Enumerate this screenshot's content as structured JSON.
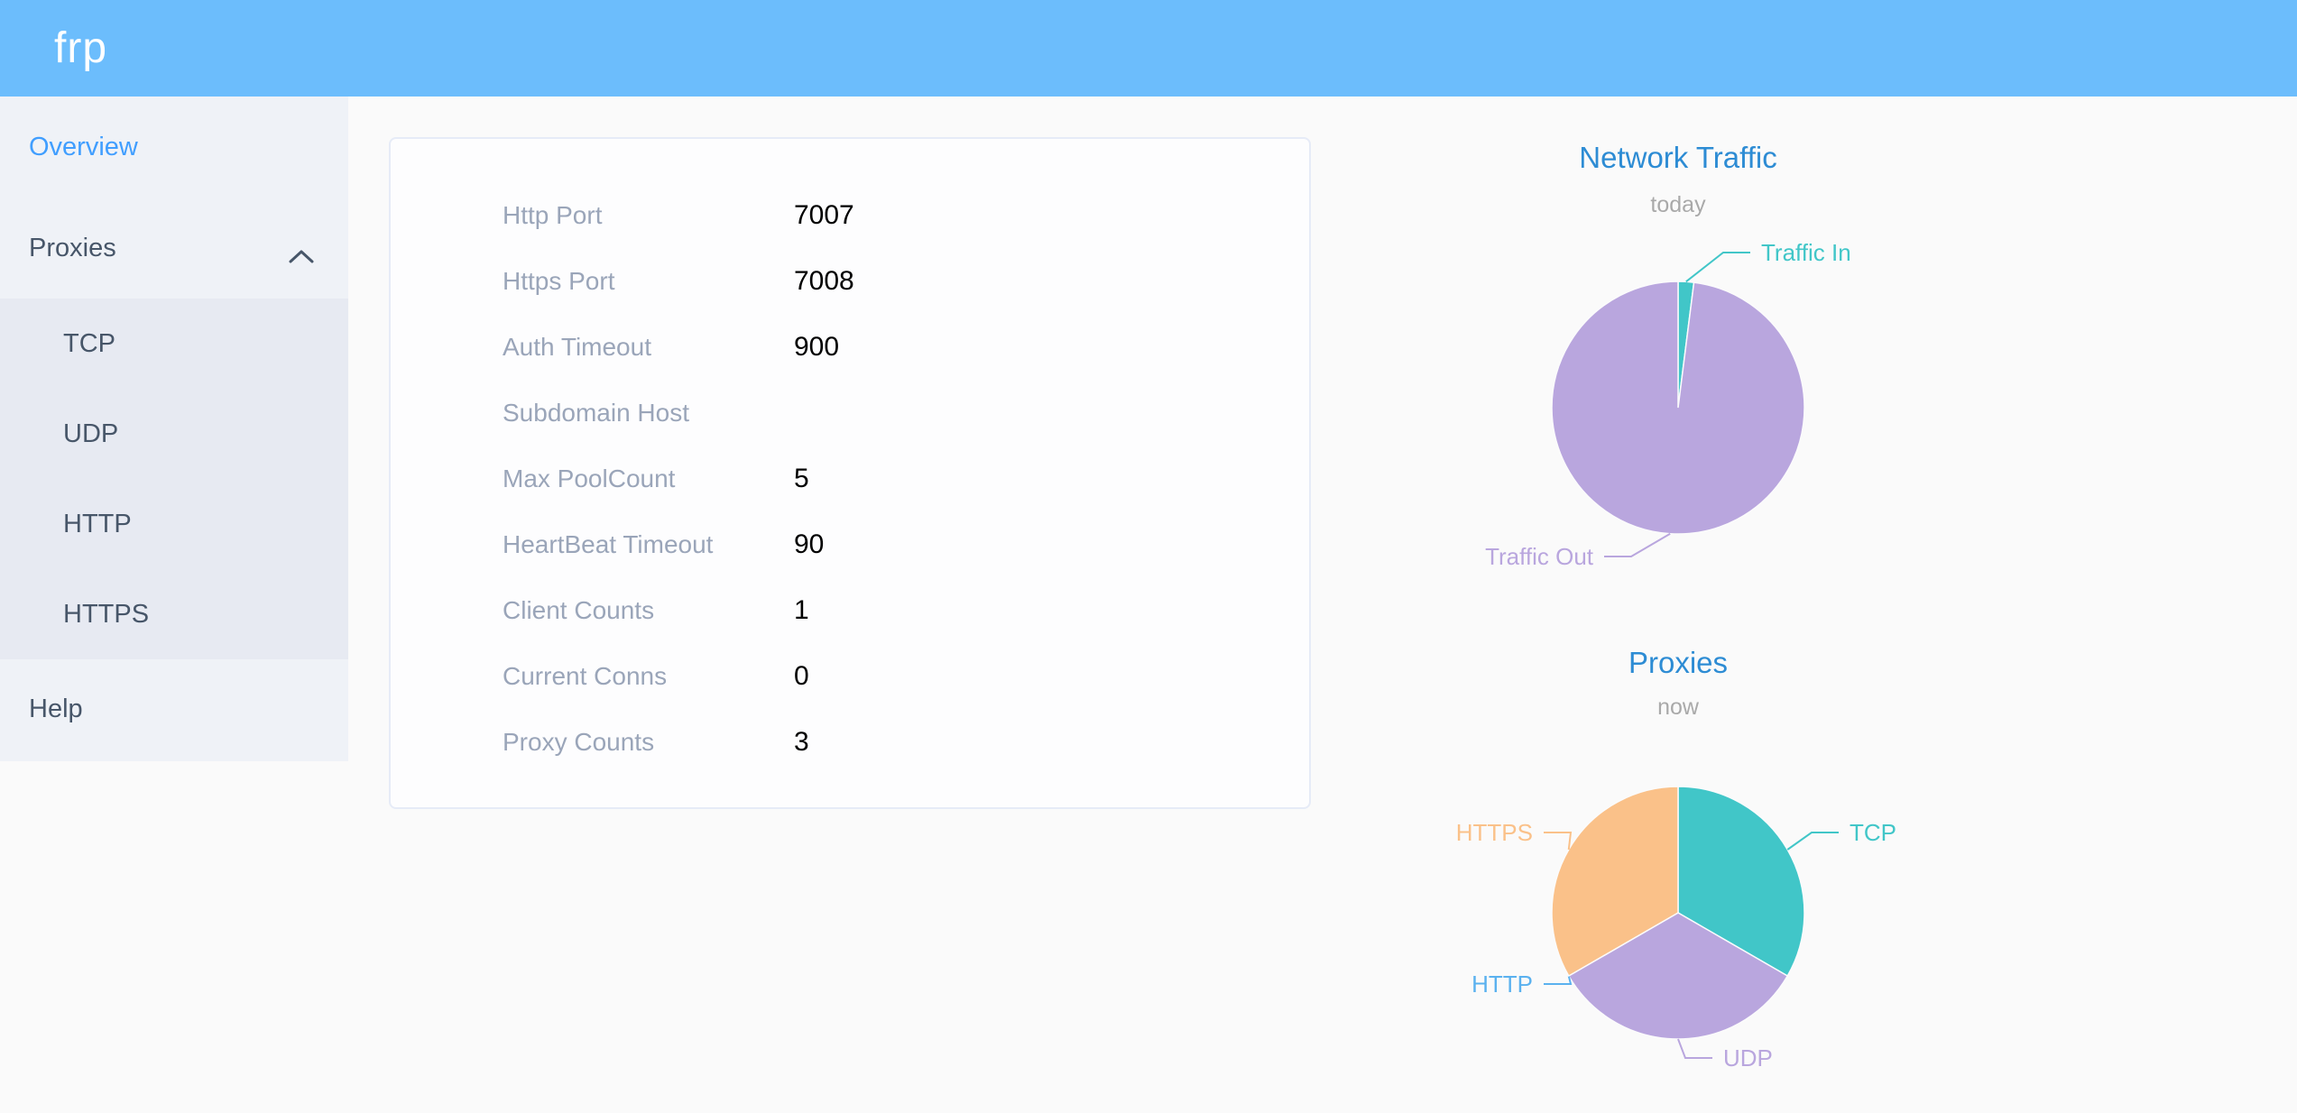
{
  "header": {
    "logo": "frp"
  },
  "sidebar": {
    "items": [
      {
        "label": "Overview",
        "active": true
      },
      {
        "label": "Proxies",
        "expanded": true,
        "children": [
          "TCP",
          "UDP",
          "HTTP",
          "HTTPS"
        ]
      },
      {
        "label": "Help"
      }
    ]
  },
  "overview_card": {
    "rows": [
      {
        "label": "Http Port",
        "value": "7007"
      },
      {
        "label": "Https Port",
        "value": "7008"
      },
      {
        "label": "Auth Timeout",
        "value": "900"
      },
      {
        "label": "Subdomain Host",
        "value": ""
      },
      {
        "label": "Max PoolCount",
        "value": "5"
      },
      {
        "label": "HeartBeat Timeout",
        "value": "90"
      },
      {
        "label": "Client Counts",
        "value": "1"
      },
      {
        "label": "Current Conns",
        "value": "0"
      },
      {
        "label": "Proxy Counts",
        "value": "3"
      }
    ]
  },
  "chart_data": [
    {
      "type": "pie",
      "title": "Network Traffic",
      "subtitle": "today",
      "values_are": "percent share estimated from pixels (no numeric labels shown)",
      "slices": [
        {
          "name": "Traffic In",
          "value": 2,
          "color": "#41c6c8"
        },
        {
          "name": "Traffic Out",
          "value": 98,
          "color": "#b9a6de"
        }
      ],
      "legend_position": "callout-labels"
    },
    {
      "type": "pie",
      "title": "Proxies",
      "subtitle": "now",
      "values_are": "proxy counts per type (three equal slices, HTTP empty)",
      "slices": [
        {
          "name": "TCP",
          "value": 1,
          "color": "#41c6c8"
        },
        {
          "name": "UDP",
          "value": 1,
          "color": "#b9a6de"
        },
        {
          "name": "HTTP",
          "value": 0,
          "color": "#5ab1ef"
        },
        {
          "name": "HTTPS",
          "value": 1,
          "color": "#fac189"
        }
      ],
      "legend_position": "callout-labels"
    }
  ],
  "colors": {
    "header_bg": "#6cbdfc",
    "sidebar_bg": "#eff2f7",
    "submenu_bg": "#e7eaf2",
    "active_menu_text": "#409eff",
    "menu_text": "#475669",
    "chart_title": "#2d8cd4",
    "chart_subtitle": "#a9a9a9",
    "card_label": "#9aa5b9",
    "card_value": "#000000"
  }
}
